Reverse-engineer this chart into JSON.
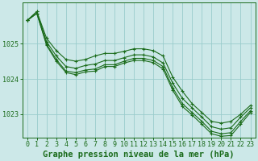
{
  "title": "Graphe pression niveau de la mer (hPa)",
  "background_color": "#cce8e8",
  "grid_color": "#99cccc",
  "line_color": "#1a6b1a",
  "hours": [
    0,
    1,
    2,
    3,
    4,
    5,
    6,
    7,
    8,
    9,
    10,
    11,
    12,
    13,
    14,
    15,
    16,
    17,
    18,
    19,
    20,
    21,
    22,
    23
  ],
  "series": [
    [
      1025.65,
      1025.9,
      1025.15,
      1024.8,
      1024.55,
      1024.5,
      1024.55,
      1024.65,
      1024.72,
      1024.72,
      1024.78,
      1024.85,
      1024.85,
      1024.8,
      1024.65,
      1024.05,
      1023.65,
      1023.3,
      1023.05,
      1022.8,
      1022.75,
      1022.8,
      1023.0,
      1023.25
    ],
    [
      1025.65,
      1025.9,
      1025.05,
      1024.65,
      1024.35,
      1024.3,
      1024.38,
      1024.42,
      1024.52,
      1024.52,
      1024.6,
      1024.68,
      1024.68,
      1024.62,
      1024.45,
      1023.88,
      1023.45,
      1023.18,
      1022.92,
      1022.65,
      1022.58,
      1022.62,
      1022.92,
      1023.18
    ],
    [
      1025.65,
      1025.85,
      1024.98,
      1024.55,
      1024.22,
      1024.18,
      1024.25,
      1024.28,
      1024.4,
      1024.4,
      1024.5,
      1024.58,
      1024.58,
      1024.52,
      1024.35,
      1023.75,
      1023.3,
      1023.05,
      1022.8,
      1022.52,
      1022.45,
      1022.48,
      1022.8,
      1023.1
    ],
    [
      1025.65,
      1025.85,
      1024.95,
      1024.5,
      1024.18,
      1024.12,
      1024.2,
      1024.22,
      1024.35,
      1024.35,
      1024.45,
      1024.52,
      1024.52,
      1024.46,
      1024.28,
      1023.68,
      1023.22,
      1022.98,
      1022.72,
      1022.45,
      1022.38,
      1022.4,
      1022.72,
      1023.05
    ]
  ],
  "ylim": [
    1022.35,
    1026.15
  ],
  "yticks": [
    1023,
    1024,
    1025
  ],
  "xlim": [
    -0.5,
    23.5
  ],
  "title_fontsize": 7.5,
  "tick_fontsize": 6.0,
  "figsize": [
    3.2,
    2.0
  ],
  "dpi": 100
}
